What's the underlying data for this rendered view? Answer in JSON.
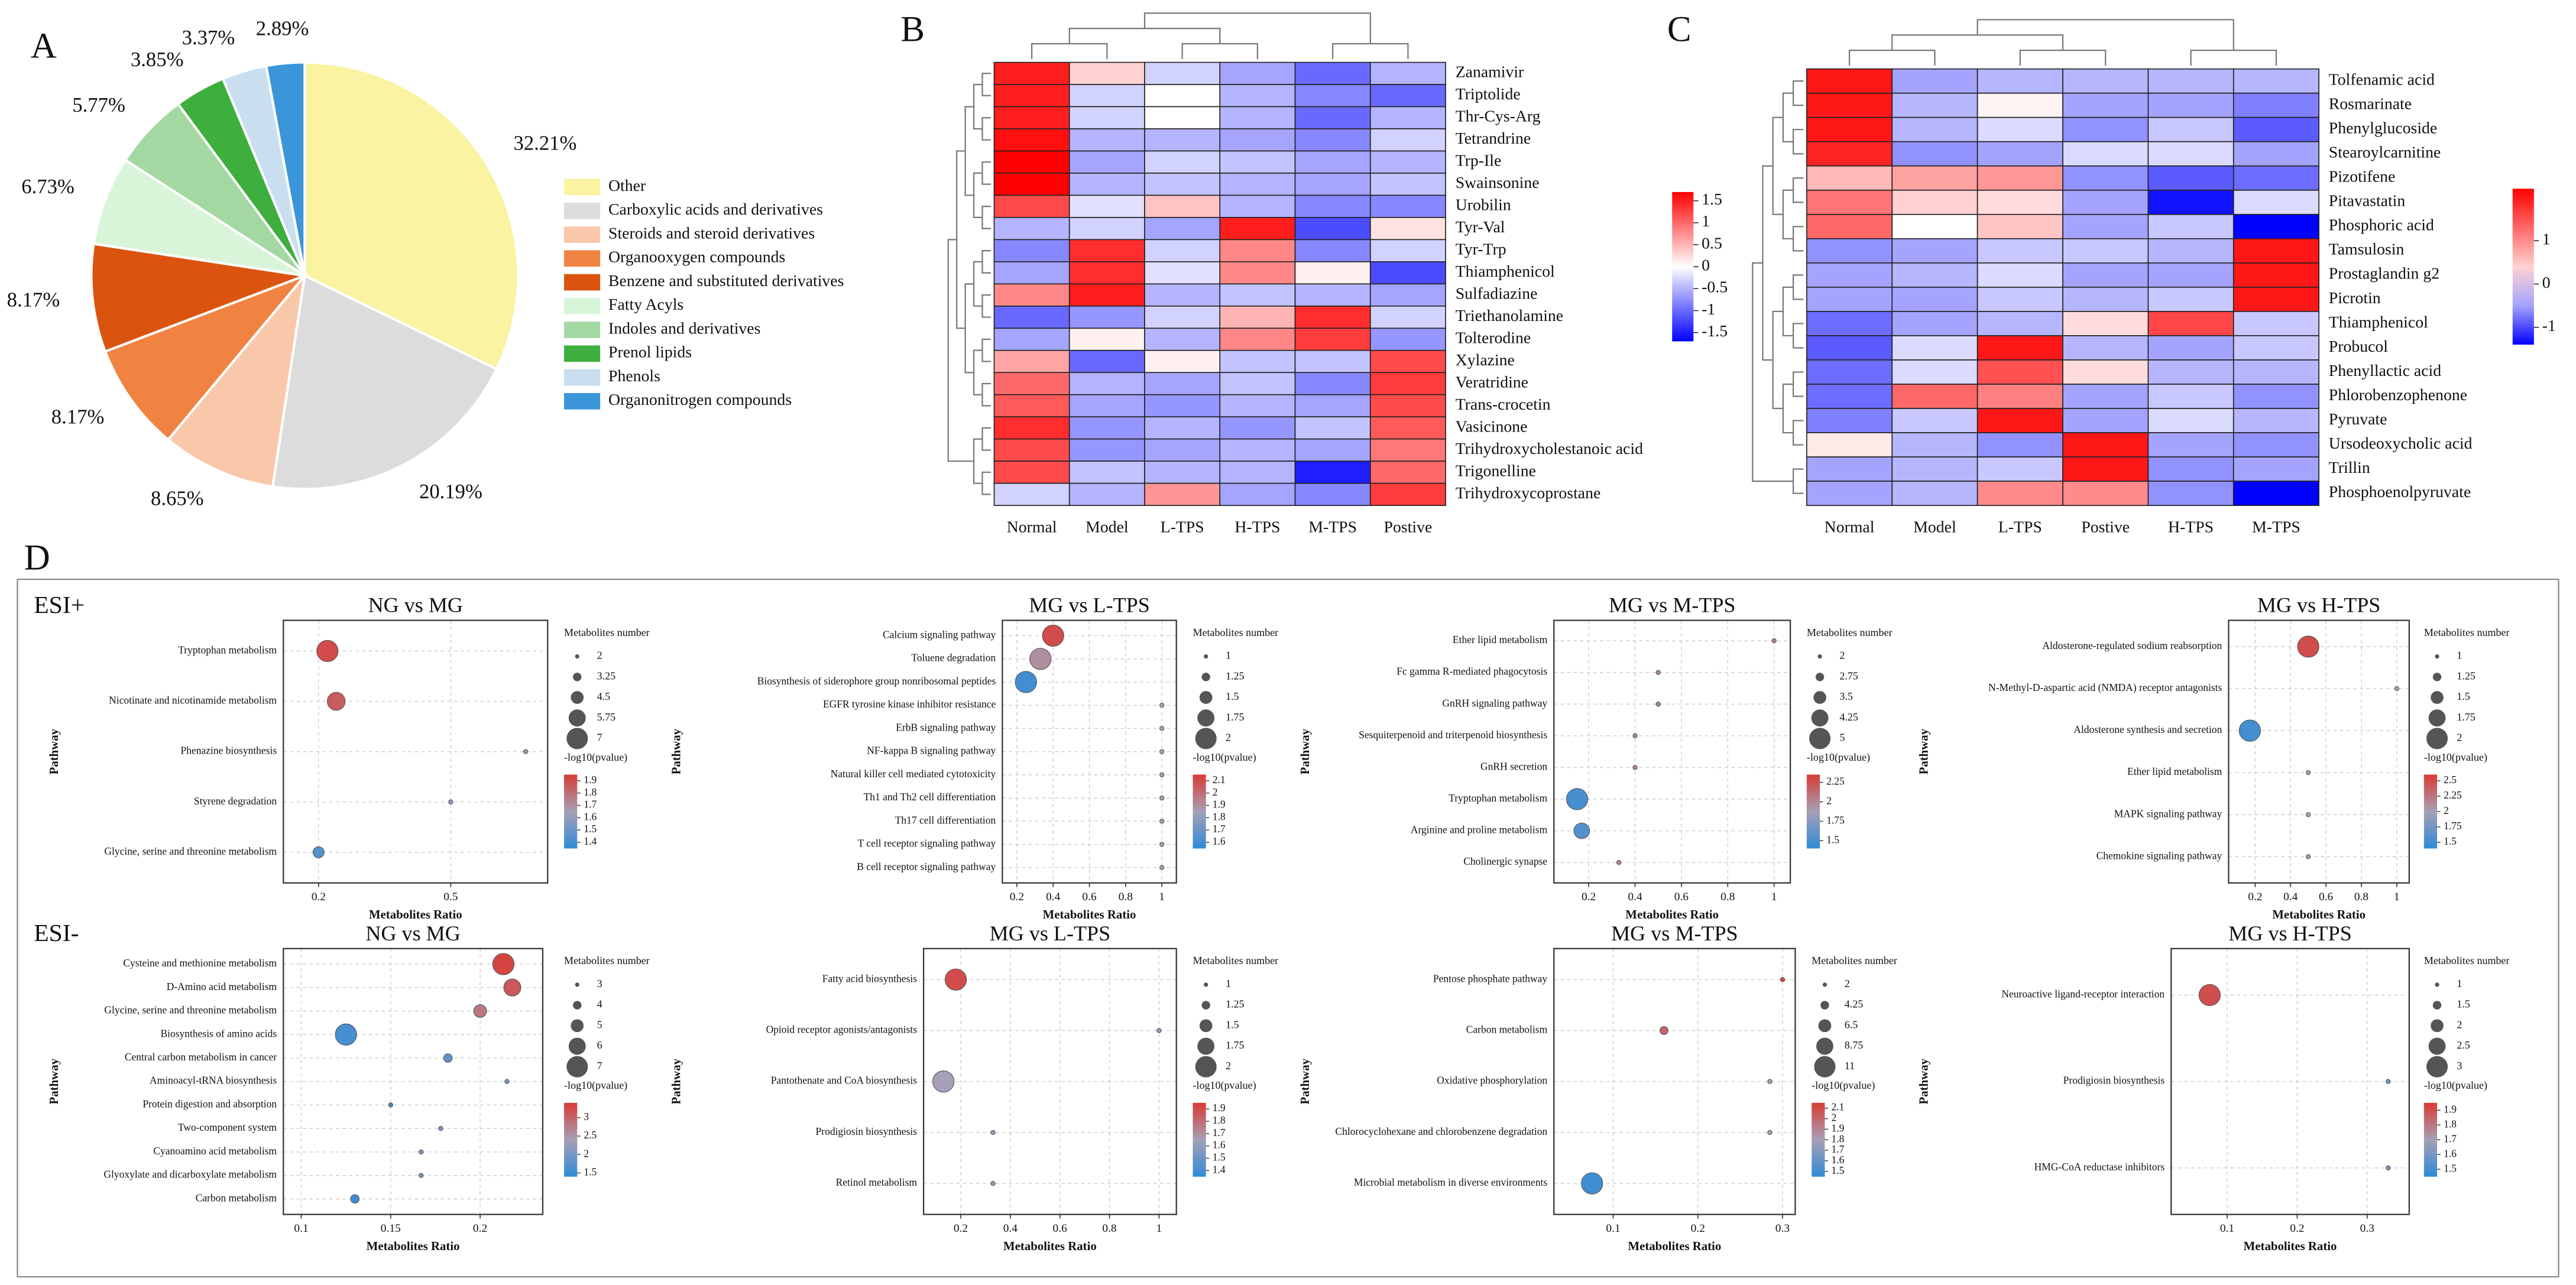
{
  "chart_data": [
    {
      "type": "pie",
      "panel_label": "A",
      "categories": [
        "Other",
        "Carboxylic acids and derivatives",
        "Steroids and steroid derivatives",
        "Organooxygen compounds",
        "Benzene and substituted derivatives",
        "Fatty Acyls",
        "Indoles and derivatives",
        "Prenol lipids",
        "Phenols",
        "Organonitrogen compounds"
      ],
      "values": [
        32.21,
        20.19,
        8.65,
        8.17,
        8.17,
        6.73,
        5.77,
        3.85,
        3.37,
        2.89
      ],
      "value_labels": [
        "32.21%",
        "20.19%",
        "8.65%",
        "8.17%",
        "8.17%",
        "6.73%",
        "5.77%",
        "3.85%",
        "3.37%",
        "2.89%"
      ],
      "colors": [
        "#f9f3a2",
        "#dcdcdc",
        "#f9c8aa",
        "#f08341",
        "#db540f",
        "#d9f5d9",
        "#a4d8a2",
        "#3eae3e",
        "#c9dff0",
        "#3b95d9"
      ]
    },
    {
      "type": "heatmap",
      "panel_label": "B",
      "columns": [
        "Normal",
        "Model",
        "L-TPS",
        "H-TPS",
        "M-TPS",
        "Postive"
      ],
      "rows": [
        "Zanamivir",
        "Triptolide",
        "Thr-Cys-Arg",
        "Tetrandrine",
        "Trp-Ile",
        "Swainsonine",
        "Urobilin",
        "Tyr-Val",
        "Tyr-Trp",
        "Thiamphenicol",
        "Sulfadiazine",
        "Triethanolamine",
        "Tolterodine",
        "Xylazine",
        "Veratridine",
        "Trans-crocetin",
        "Vasicinone",
        "Trihydroxycholestanoic acid",
        "Trigonelline",
        "Trihydroxycoprostane"
      ],
      "values": [
        [
          1.5,
          0.3,
          -0.3,
          -0.6,
          -1,
          -0.5
        ],
        [
          1.5,
          -0.3,
          0,
          -0.5,
          -0.8,
          -1
        ],
        [
          1.5,
          -0.3,
          0,
          -0.5,
          -1,
          -0.5
        ],
        [
          1.6,
          -0.5,
          -0.5,
          -0.6,
          -0.8,
          -0.3
        ],
        [
          1.7,
          -0.6,
          -0.3,
          -0.4,
          -0.6,
          -0.5
        ],
        [
          1.7,
          -0.5,
          -0.4,
          -0.5,
          -0.6,
          -0.4
        ],
        [
          1.2,
          -0.2,
          0.4,
          -0.5,
          -0.8,
          -0.8
        ],
        [
          -0.5,
          -0.3,
          -0.6,
          1.5,
          -1.2,
          0.2
        ],
        [
          -0.8,
          1.4,
          -0.3,
          0.8,
          -0.8,
          -0.3
        ],
        [
          -0.6,
          1.4,
          -0.2,
          0.8,
          0.1,
          -1.2
        ],
        [
          0.8,
          1.5,
          -0.5,
          -0.4,
          -0.5,
          -0.6
        ],
        [
          -1,
          -0.7,
          -0.3,
          0.5,
          1.4,
          -0.3
        ],
        [
          -0.6,
          0.1,
          -0.5,
          0.8,
          1.3,
          -0.7
        ],
        [
          0.6,
          -1,
          0.1,
          -0.4,
          -0.4,
          1.2
        ],
        [
          1,
          -0.5,
          -0.6,
          -0.4,
          -0.8,
          1.3
        ],
        [
          1.1,
          -0.6,
          -0.7,
          -0.5,
          -0.6,
          1.2
        ],
        [
          1.4,
          -0.7,
          -0.5,
          -0.7,
          -0.4,
          1.1
        ],
        [
          1.2,
          -0.7,
          -0.6,
          -0.5,
          -0.6,
          0.9
        ],
        [
          1.2,
          -0.4,
          -0.5,
          -0.5,
          -1.5,
          1
        ],
        [
          -0.3,
          -0.5,
          0.7,
          -0.6,
          -0.8,
          1.3
        ]
      ],
      "zlim": [
        -1.7,
        1.7
      ],
      "zticks": [
        1.5,
        1,
        0.5,
        0,
        -0.5,
        -1,
        -1.5
      ],
      "colors": [
        "#0000ff",
        "#ffffff",
        "#ff0000"
      ]
    },
    {
      "type": "heatmap",
      "panel_label": "C",
      "columns": [
        "Normal",
        "Model",
        "L-TPS",
        "Postive",
        "H-TPS",
        "M-TPS"
      ],
      "rows": [
        "Tolfenamic acid",
        "Rosmarinate",
        "Phenylglucoside",
        "Stearoylcarnitine",
        "Pizotifene",
        "Pitavastatin",
        "Phosphoric acid",
        "Tamsulosin",
        "Prostaglandin g2",
        "Picrotin",
        "Thiamphenicol",
        "Probucol",
        "Phenyllactic acid",
        "Phlorobenzophenone",
        "Pyruvate",
        "Ursodeoxycholic acid",
        "Trillin",
        "Phosphoenolpyruvate"
      ],
      "values": [
        [
          2,
          -0.5,
          -0.4,
          -0.4,
          -0.4,
          -0.4
        ],
        [
          2,
          -0.4,
          0.1,
          -0.5,
          -0.5,
          -0.7
        ],
        [
          2,
          -0.4,
          -0.2,
          -0.6,
          -0.3,
          -0.9
        ],
        [
          1.9,
          -0.6,
          -0.5,
          -0.2,
          -0.2,
          -0.5
        ],
        [
          0.6,
          0.8,
          0.9,
          -0.6,
          -0.9,
          -0.8
        ],
        [
          1.2,
          0.4,
          0.3,
          -0.5,
          -1.3,
          -0.2
        ],
        [
          1.3,
          0,
          0.5,
          -0.5,
          -0.3,
          -1.4
        ],
        [
          -0.6,
          -0.5,
          -0.3,
          -0.3,
          -0.4,
          2
        ],
        [
          -0.5,
          -0.4,
          -0.2,
          -0.5,
          -0.5,
          2
        ],
        [
          -0.5,
          -0.5,
          -0.3,
          -0.4,
          -0.3,
          2
        ],
        [
          -0.8,
          -0.5,
          -0.4,
          0.3,
          1.6,
          -0.3
        ],
        [
          -0.9,
          -0.2,
          2,
          -0.4,
          -0.5,
          -0.3
        ],
        [
          -0.8,
          -0.2,
          1.5,
          0.3,
          -0.4,
          -0.4
        ],
        [
          -0.8,
          1.3,
          1.1,
          -0.5,
          -0.3,
          -0.6
        ],
        [
          -0.7,
          -0.3,
          2,
          -0.5,
          -0.2,
          -0.4
        ],
        [
          0.2,
          -0.4,
          -0.6,
          2,
          -0.5,
          -0.6
        ],
        [
          -0.5,
          -0.4,
          -0.3,
          2,
          -0.6,
          -0.5
        ],
        [
          -0.5,
          -0.4,
          1,
          1,
          -0.6,
          -1.4
        ]
      ],
      "zlim": [
        -1.4,
        2.2
      ],
      "zticks": [
        1,
        0,
        -1
      ],
      "colors": [
        "#0000ff",
        "#ffffff",
        "#ff0000"
      ]
    },
    {
      "type": "bubble",
      "panel_label": "D",
      "ion_mode": "ESI+",
      "title": "NG vs MG",
      "categories": [
        "Tryptophan metabolism",
        "Nicotinate and nicotinamide metabolism",
        "Phenazine biosynthesis",
        "Styrene degradation",
        "Glycine, serine and threonine metabolism"
      ],
      "x": [
        0.22,
        0.24,
        0.67,
        0.5,
        0.2
      ],
      "sizes": [
        7,
        6,
        2,
        2,
        4
      ],
      "neglogp": [
        1.9,
        1.85,
        1.6,
        1.6,
        1.45
      ],
      "xlim": [
        0.12,
        0.72
      ],
      "xticks": [
        0.2,
        0.5
      ],
      "x_label": "Metabolites Ratio",
      "y_label": "Pathway",
      "size_legend_title": "Metabolites number",
      "size_ticks": [
        2,
        3.25,
        4.5,
        5.75,
        7
      ],
      "color_legend_title": "-log10(pvalue)",
      "color_ticks": [
        1.9,
        1.8,
        1.7,
        1.6,
        1.5,
        1.4
      ],
      "clim": [
        1.35,
        1.95
      ],
      "colors": [
        "#2e8bd6",
        "#a79fb6",
        "#d93b34"
      ]
    },
    {
      "type": "bubble",
      "title": "MG vs L-TPS",
      "categories": [
        "Calcium signaling pathway",
        "Toluene degradation",
        "Biosynthesis of siderophore group nonribosomal peptides",
        "EGFR tyrosine kinase inhibitor resistance",
        "ErbB signaling pathway",
        "NF-kappa B signaling pathway",
        "Natural killer cell mediated cytotoxicity",
        "Th1 and Th2 cell differentiation",
        "Th17 cell differentiation",
        "T cell receptor signaling pathway",
        "B cell receptor signaling pathway"
      ],
      "x": [
        0.4,
        0.33,
        0.25,
        1,
        1,
        1,
        1,
        1,
        1,
        1,
        1
      ],
      "sizes": [
        2,
        2,
        2,
        1,
        1,
        1,
        1,
        1,
        1,
        1,
        1
      ],
      "neglogp": [
        2.1,
        1.9,
        1.6,
        1.85,
        1.85,
        1.85,
        1.85,
        1.85,
        1.85,
        1.85,
        1.85
      ],
      "xlim": [
        0.12,
        1.08
      ],
      "xticks": [
        0.2,
        0.4,
        0.6,
        0.8,
        1
      ],
      "x_label": "Metabolites Ratio",
      "y_label": "Pathway",
      "size_legend_title": "Metabolites number",
      "size_ticks": [
        1,
        1.25,
        1.5,
        1.75,
        2
      ],
      "color_legend_title": "-log10(pvalue)",
      "color_ticks": [
        2.1,
        2,
        1.9,
        1.8,
        1.7,
        1.6
      ],
      "clim": [
        1.55,
        2.15
      ],
      "colors": [
        "#2e8bd6",
        "#a79fb6",
        "#d93b34"
      ]
    },
    {
      "type": "bubble",
      "title": "MG vs M-TPS",
      "categories": [
        "Ether lipid metabolism",
        "Fc gamma R-mediated phagocytosis",
        "GnRH signaling pathway",
        "Sesquiterpenoid and triterpenoid biosynthesis",
        "GnRH secretion",
        "Tryptophan metabolism",
        "Arginine and proline metabolism",
        "Cholinergic synapse"
      ],
      "x": [
        1,
        0.5,
        0.5,
        0.4,
        0.4,
        0.15,
        0.17,
        0.33
      ],
      "sizes": [
        2,
        2,
        2,
        2,
        2,
        5,
        4,
        2
      ],
      "neglogp": [
        2,
        2,
        2,
        2,
        2,
        1.5,
        1.55,
        2
      ],
      "xlim": [
        0.05,
        1.07
      ],
      "xticks": [
        0.2,
        0.4,
        0.6,
        0.8,
        1
      ],
      "x_label": "Metabolites Ratio",
      "y_label": "Pathway",
      "size_legend_title": "Metabolites number",
      "size_ticks": [
        2,
        2.75,
        3.5,
        4.25,
        5
      ],
      "color_legend_title": "-log10(pvalue)",
      "color_ticks": [
        2.25,
        2,
        1.75,
        1.5
      ],
      "clim": [
        1.4,
        2.35
      ],
      "colors": [
        "#2e8bd6",
        "#a79fb6",
        "#d93b34"
      ]
    },
    {
      "type": "bubble",
      "title": "MG vs H-TPS",
      "categories": [
        "Aldosterone-regulated sodium reabsorption",
        "N-Methyl-D-aspartic acid (NMDA) receptor antagonists",
        "Aldosterone synthesis and secretion",
        "Ether lipid metabolism",
        "MAPK signaling pathway",
        "Chemokine signaling pathway"
      ],
      "x": [
        0.5,
        1,
        0.17,
        0.5,
        0.5,
        0.5
      ],
      "sizes": [
        2,
        1,
        2,
        1,
        1,
        1
      ],
      "neglogp": [
        2.5,
        2,
        1.5,
        2,
        2,
        2
      ],
      "xlim": [
        0.05,
        1.07
      ],
      "xticks": [
        0.2,
        0.4,
        0.6,
        0.8,
        1
      ],
      "x_label": "Metabolites Ratio",
      "y_label": "Pathway",
      "size_legend_title": "Metabolites number",
      "size_ticks": [
        1,
        1.25,
        1.5,
        1.75,
        2
      ],
      "color_legend_title": "-log10(pvalue)",
      "color_ticks": [
        2.5,
        2.25,
        2,
        1.75,
        1.5
      ],
      "clim": [
        1.4,
        2.6
      ],
      "colors": [
        "#2e8bd6",
        "#a79fb6",
        "#d93b34"
      ]
    },
    {
      "type": "bubble",
      "ion_mode": "ESI-",
      "title": "NG vs MG",
      "categories": [
        "Cysteine and methionine metabolism",
        "D-Amino acid metabolism",
        "Glycine, serine and threonine metabolism",
        "Biosynthesis of amino acids",
        "Central carbon metabolism in cancer",
        "Aminoacyl-tRNA biosynthesis",
        "Protein digestion and absorption",
        "Two-component system",
        "Cyanoamino acid metabolism",
        "Glyoxylate and dicarboxylate metabolism",
        "Carbon metabolism"
      ],
      "x": [
        0.213,
        0.218,
        0.2,
        0.125,
        0.182,
        0.215,
        0.15,
        0.178,
        0.167,
        0.167,
        0.13
      ],
      "sizes": [
        7,
        6,
        5,
        7,
        4,
        3,
        3,
        3,
        3,
        3,
        4
      ],
      "neglogp": [
        3.3,
        3.1,
        2.8,
        1.6,
        1.8,
        2,
        1.5,
        2,
        2,
        2,
        1.5
      ],
      "xlim": [
        0.09,
        0.235
      ],
      "xticks": [
        0.1,
        0.15,
        0.2
      ],
      "x_label": "Metabolites Ratio",
      "y_label": "Pathway",
      "size_legend_title": "Metabolites number",
      "size_ticks": [
        3,
        4,
        5,
        6,
        7
      ],
      "color_legend_title": "-log10(pvalue)",
      "color_ticks": [
        3,
        2.5,
        2,
        1.5
      ],
      "clim": [
        1.4,
        3.4
      ],
      "colors": [
        "#2e8bd6",
        "#a79fb6",
        "#d93b34"
      ]
    },
    {
      "type": "bubble",
      "title": "MG vs L-TPS",
      "categories": [
        "Fatty acid biosynthesis",
        "Opioid receptor agonists/antagonists",
        "Pantothenate and CoA biosynthesis",
        "Prodigiosin biosynthesis",
        "Retinol metabolism"
      ],
      "x": [
        0.18,
        1,
        0.13,
        0.33,
        0.33
      ],
      "sizes": [
        2,
        1,
        2,
        1,
        1
      ],
      "neglogp": [
        1.9,
        1.6,
        1.65,
        1.6,
        1.6
      ],
      "xlim": [
        0.05,
        1.07
      ],
      "xticks": [
        0.2,
        0.4,
        0.6,
        0.8,
        1
      ],
      "x_label": "Metabolites Ratio",
      "y_label": "Pathway",
      "size_legend_title": "Metabolites number",
      "size_ticks": [
        1,
        1.25,
        1.5,
        1.75,
        2
      ],
      "color_legend_title": "-log10(pvalue)",
      "color_ticks": [
        1.9,
        1.8,
        1.7,
        1.6,
        1.5,
        1.4
      ],
      "clim": [
        1.35,
        1.95
      ],
      "colors": [
        "#2e8bd6",
        "#a79fb6",
        "#d93b34"
      ]
    },
    {
      "type": "bubble",
      "title": "MG vs M-TPS",
      "categories": [
        "Pentose phosphate pathway",
        "Carbon metabolism",
        "Oxidative phosphorylation",
        "Chlorocyclohexane and chlorobenzene degradation",
        "Microbial metabolism in diverse environments"
      ],
      "x": [
        0.3,
        0.16,
        0.285,
        0.285,
        0.075
      ],
      "sizes": [
        2,
        4,
        2,
        2,
        11
      ],
      "neglogp": [
        2.1,
        2,
        1.8,
        1.8,
        1.5
      ],
      "xlim": [
        0.03,
        0.315
      ],
      "xticks": [
        0.1,
        0.2,
        0.3
      ],
      "x_label": "Metabolites Ratio",
      "y_label": "Pathway",
      "size_legend_title": "Metabolites number",
      "size_ticks": [
        2,
        4.25,
        6.5,
        8.75,
        11
      ],
      "color_legend_title": "-log10(pvalue)",
      "color_ticks": [
        2.1,
        2,
        1.9,
        1.8,
        1.7,
        1.6,
        1.5
      ],
      "clim": [
        1.45,
        2.15
      ],
      "colors": [
        "#2e8bd6",
        "#a79fb6",
        "#d93b34"
      ]
    },
    {
      "type": "bubble",
      "title": "MG vs H-TPS",
      "categories": [
        "Neuroactive ligand-receptor interaction",
        "Prodigiosin biosynthesis",
        "HMG-CoA reductase inhibitors"
      ],
      "x": [
        0.075,
        0.33,
        0.33
      ],
      "sizes": [
        3,
        1,
        1
      ],
      "neglogp": [
        1.9,
        1.6,
        1.6
      ],
      "xlim": [
        0.02,
        0.36
      ],
      "xticks": [
        0.1,
        0.2,
        0.3
      ],
      "x_label": "Metabolites Ratio",
      "y_label": "Pathway",
      "size_legend_title": "Metabolites number",
      "size_ticks": [
        1,
        1.5,
        2,
        2.5,
        3
      ],
      "color_legend_title": "-log10(pvalue)",
      "color_ticks": [
        1.9,
        1.8,
        1.7,
        1.6,
        1.5
      ],
      "clim": [
        1.45,
        1.95
      ],
      "colors": [
        "#2e8bd6",
        "#a79fb6",
        "#d93b34"
      ]
    }
  ]
}
